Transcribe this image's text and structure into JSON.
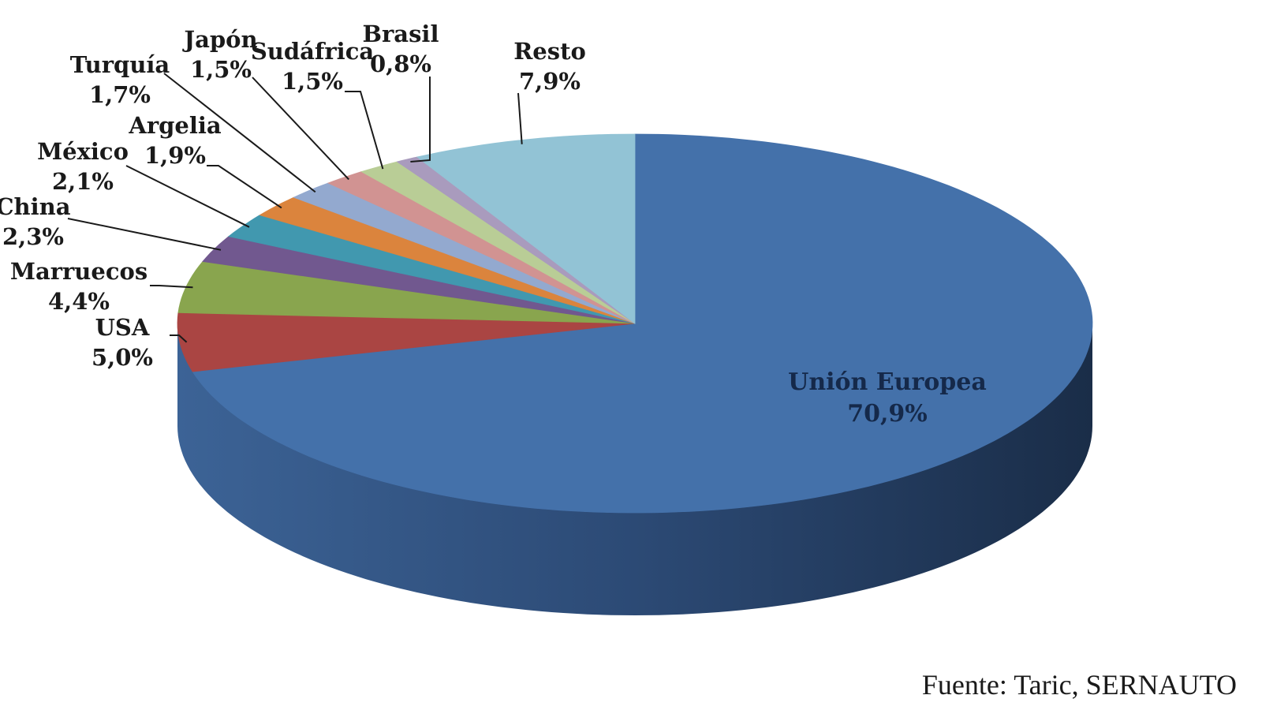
{
  "chart_data": {
    "type": "pie",
    "style": "3d",
    "slices": [
      {
        "label": "Unión Europea",
        "value": 70.9,
        "value_text": "70,9%",
        "color": "#4471AA"
      },
      {
        "label": "USA",
        "value": 5.0,
        "value_text": "5,0%",
        "color": "#AA4543"
      },
      {
        "label": "Marruecos",
        "value": 4.4,
        "value_text": "4,4%",
        "color": "#89A54E"
      },
      {
        "label": "China",
        "value": 2.3,
        "value_text": "2,3%",
        "color": "#71588F"
      },
      {
        "label": "México",
        "value": 2.1,
        "value_text": "2,1%",
        "color": "#4198AF"
      },
      {
        "label": "Argelia",
        "value": 1.9,
        "value_text": "1,9%",
        "color": "#DB843D"
      },
      {
        "label": "Turquía",
        "value": 1.7,
        "value_text": "1,7%",
        "color": "#93A9CF"
      },
      {
        "label": "Japón",
        "value": 1.5,
        "value_text": "1,5%",
        "color": "#D19392"
      },
      {
        "label": "Sudáfrica",
        "value": 1.5,
        "value_text": "1,5%",
        "color": "#B9CD96"
      },
      {
        "label": "Brasil",
        "value": 0.8,
        "value_text": "0,8%",
        "color": "#A99BBD"
      },
      {
        "label": "Resto",
        "value": 7.9,
        "value_text": "7,9%",
        "color": "#92C3D5"
      }
    ],
    "legend": "none"
  },
  "source": "Fuente:  Taric, SERNAUTO"
}
